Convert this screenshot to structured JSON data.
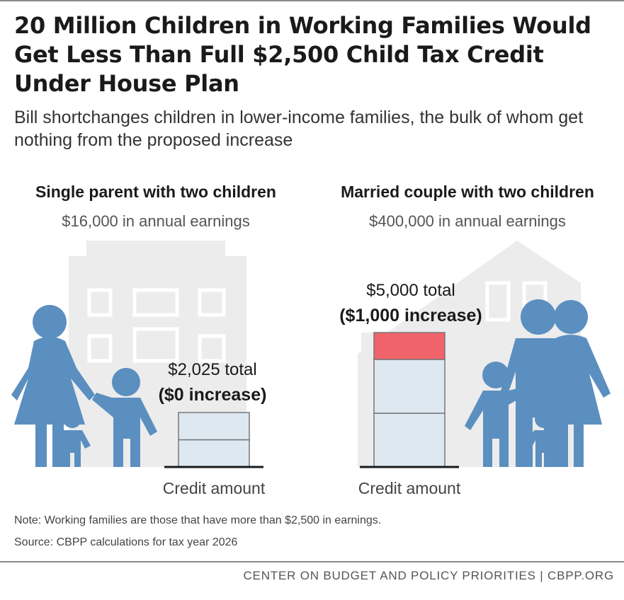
{
  "title": "20 Million Children in Working Families Would Get Less Than Full $2,500 Child Tax Credit Under House Plan",
  "subtitle": "Bill shortchanges children in lower-income families, the bulk of whom get nothing from the proposed increase",
  "colors": {
    "figure": "#5b8fc0",
    "building": "#ececec",
    "bar_fill": "#dde8f1",
    "increase": "#f0636b",
    "baseline": "#1a1a1a"
  },
  "chart_data": [
    {
      "type": "bar",
      "family": "Single parent with two children",
      "earnings": "$16,000 in annual earnings",
      "xlabel": "Credit amount",
      "per_child_segments": [
        1012.5,
        1012.5
      ],
      "increase": 0,
      "total": 2025,
      "label_total": "$2,025 total",
      "label_increase": "($0 increase)"
    },
    {
      "type": "bar",
      "family": "Married couple with two children",
      "earnings": "$400,000 in annual earnings",
      "xlabel": "Credit amount",
      "per_child_segments": [
        2000,
        2000
      ],
      "increase": 1000,
      "total": 5000,
      "label_total": "$5,000 total",
      "label_increase": "($1,000 increase)"
    }
  ],
  "note": "Note: Working families are those that have more than $2,500 in earnings.",
  "source": "Source: CBPP calculations for tax year 2026",
  "footer": "CENTER ON BUDGET AND POLICY PRIORITIES | CBPP.ORG"
}
